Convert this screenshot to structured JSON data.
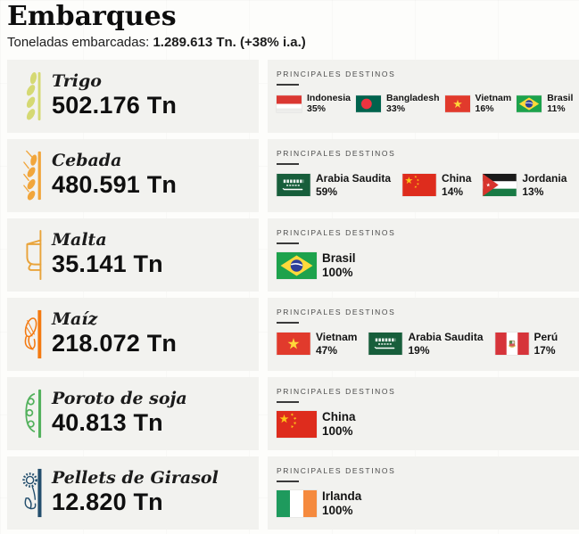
{
  "header": {
    "title": "Embarques",
    "subtitle_label": "Toneladas embarcadas: ",
    "subtitle_value": "1.289.613 Tn. (+38% i.a.)"
  },
  "destinos_label": "PRINCIPALES DESTINOS",
  "colors": {
    "card_bg": "#f2f2ef",
    "heading_gray": "#4c4c4c",
    "wheat": "#d5d973",
    "barley": "#f1a63c",
    "kettle": "#e9a43b",
    "corn": "#f4790f",
    "soy": "#53b15d",
    "sunflower": "#234e6d"
  },
  "rows": [
    {
      "name": "Trigo",
      "tons": "502.176 Tn",
      "icon": "wheat-icon",
      "icon_color": "#d5d973",
      "destinations": [
        {
          "country": "Indonesia",
          "pct": "35%",
          "flag": "indonesia-flag"
        },
        {
          "country": "Bangladesh",
          "pct": "33%",
          "flag": "bangladesh-flag"
        },
        {
          "country": "Vietnam",
          "pct": "16%",
          "flag": "vietnam-flag"
        },
        {
          "country": "Brasil",
          "pct": "11%",
          "flag": "brasil-flag"
        }
      ]
    },
    {
      "name": "Cebada",
      "tons": "480.591 Tn",
      "icon": "barley-icon",
      "icon_color": "#f1a63c",
      "destinations": [
        {
          "country": "Arabia Saudita",
          "pct": "59%",
          "flag": "arabia-saudita-flag"
        },
        {
          "country": "China",
          "pct": "14%",
          "flag": "china-flag"
        },
        {
          "country": "Jordania",
          "pct": "13%",
          "flag": "jordania-flag"
        }
      ]
    },
    {
      "name": "Malta",
      "tons": "35.141 Tn",
      "icon": "kettle-icon",
      "icon_color": "#e9a43b",
      "destinations": [
        {
          "country": "Brasil",
          "pct": "100%",
          "flag": "brasil-flag"
        }
      ]
    },
    {
      "name": "Maíz",
      "tons": "218.072 Tn",
      "icon": "corn-icon",
      "icon_color": "#f4790f",
      "destinations": [
        {
          "country": "Vietnam",
          "pct": "47%",
          "flag": "vietnam-flag"
        },
        {
          "country": "Arabia Saudita",
          "pct": "19%",
          "flag": "arabia-saudita-flag"
        },
        {
          "country": "Perú",
          "pct": "17%",
          "flag": "peru-flag"
        }
      ]
    },
    {
      "name": "Poroto de soja",
      "tons": "40.813 Tn",
      "icon": "soy-icon",
      "icon_color": "#53b15d",
      "destinations": [
        {
          "country": "China",
          "pct": "100%",
          "flag": "china-flag"
        }
      ]
    },
    {
      "name": "Pellets de Girasol",
      "tons": "12.820 Tn",
      "icon": "sunflower-icon",
      "icon_color": "#234e6d",
      "destinations": [
        {
          "country": "Irlanda",
          "pct": "100%",
          "flag": "irlanda-flag"
        }
      ]
    }
  ],
  "chart_data": {
    "type": "table",
    "title": "Embarques",
    "subtitle": "Toneladas embarcadas: 1.289.613 Tn. (+38% i.a.)",
    "total_tons": 1289613,
    "yoy_change_pct": 38,
    "rows": [
      {
        "commodity": "Trigo",
        "tons": 502176,
        "destinations": [
          {
            "country": "Indonesia",
            "share_pct": 35
          },
          {
            "country": "Bangladesh",
            "share_pct": 33
          },
          {
            "country": "Vietnam",
            "share_pct": 16
          },
          {
            "country": "Brasil",
            "share_pct": 11
          }
        ]
      },
      {
        "commodity": "Cebada",
        "tons": 480591,
        "destinations": [
          {
            "country": "Arabia Saudita",
            "share_pct": 59
          },
          {
            "country": "China",
            "share_pct": 14
          },
          {
            "country": "Jordania",
            "share_pct": 13
          }
        ]
      },
      {
        "commodity": "Malta",
        "tons": 35141,
        "destinations": [
          {
            "country": "Brasil",
            "share_pct": 100
          }
        ]
      },
      {
        "commodity": "Maíz",
        "tons": 218072,
        "destinations": [
          {
            "country": "Vietnam",
            "share_pct": 47
          },
          {
            "country": "Arabia Saudita",
            "share_pct": 19
          },
          {
            "country": "Perú",
            "share_pct": 17
          }
        ]
      },
      {
        "commodity": "Poroto de soja",
        "tons": 40813,
        "destinations": [
          {
            "country": "China",
            "share_pct": 100
          }
        ]
      },
      {
        "commodity": "Pellets de Girasol",
        "tons": 12820,
        "destinations": [
          {
            "country": "Irlanda",
            "share_pct": 100
          }
        ]
      }
    ]
  }
}
